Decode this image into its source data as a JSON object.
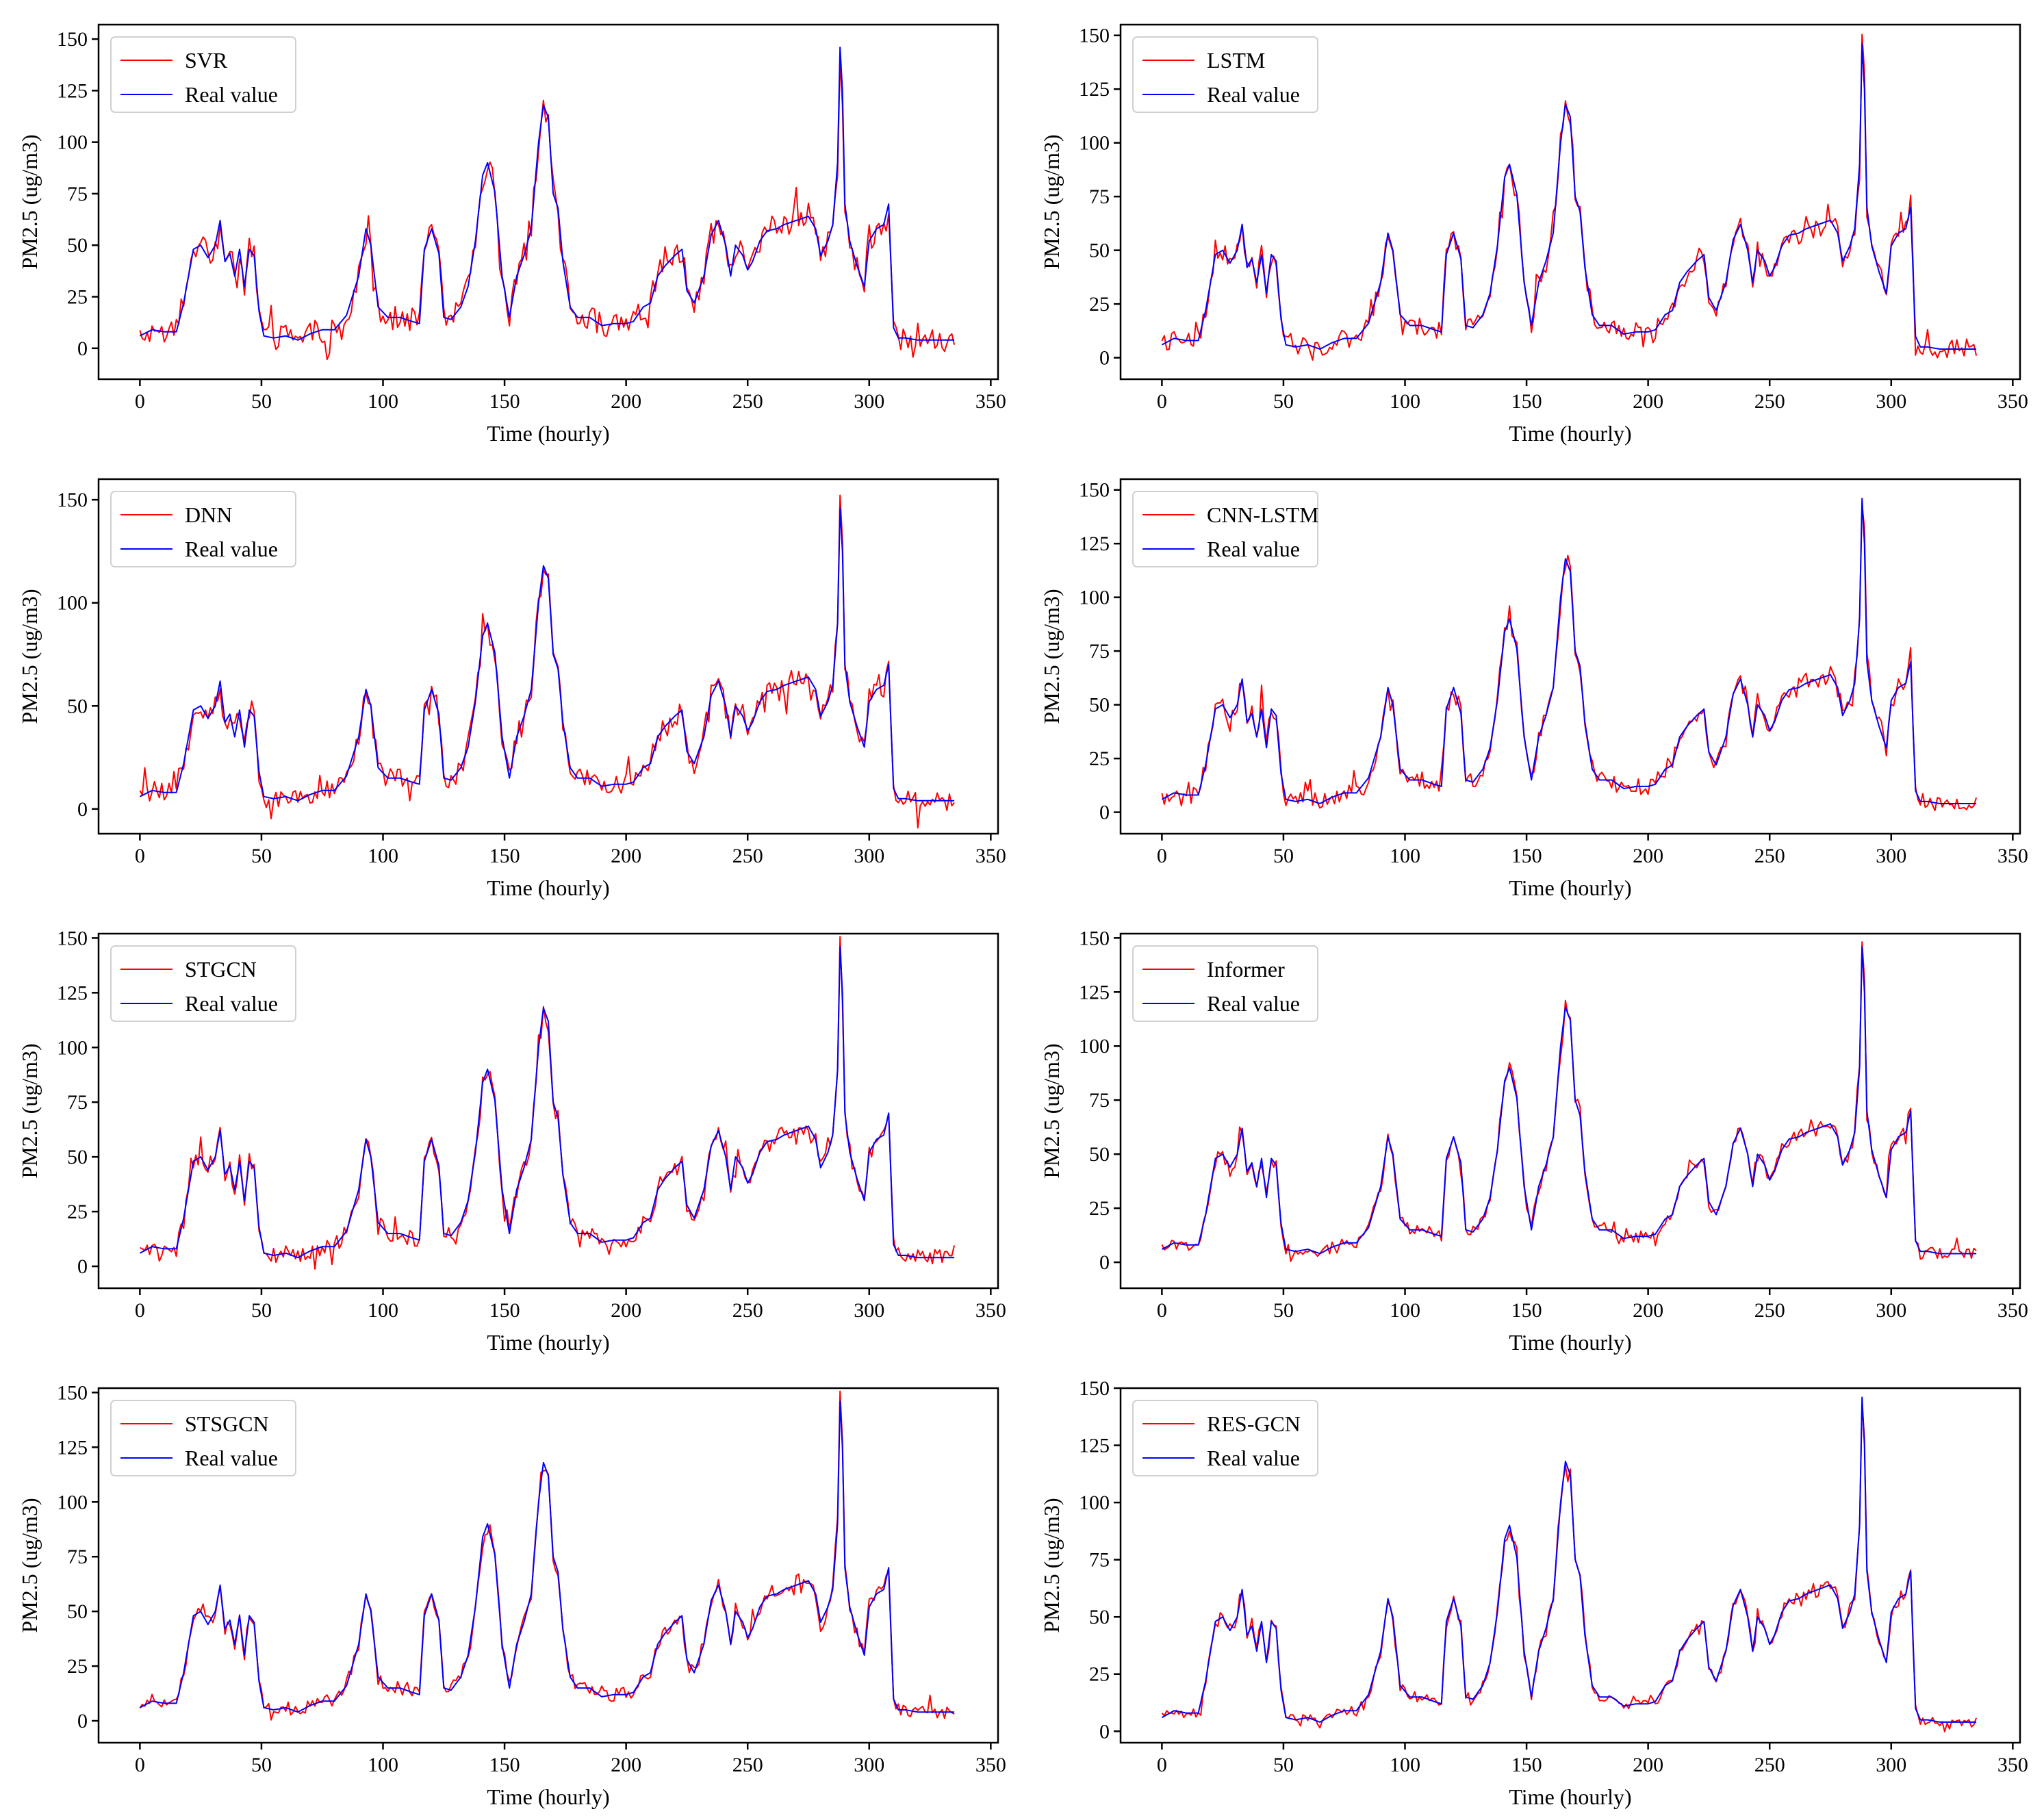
{
  "figure": {
    "colors": {
      "prediction": "#ff0000",
      "real": "#0000ff",
      "axis": "#000000"
    },
    "panels": [
      {
        "name": "panel-svr",
        "model": "SVR"
      },
      {
        "name": "panel-lstm",
        "model": "LSTM"
      },
      {
        "name": "panel-dnn",
        "model": "DNN"
      },
      {
        "name": "panel-cnn-lstm",
        "model": "CNN-LSTM"
      },
      {
        "name": "panel-stgcn",
        "model": "STGCN"
      },
      {
        "name": "panel-informer",
        "model": "Informer"
      },
      {
        "name": "panel-stsgcn",
        "model": "STSGCN"
      },
      {
        "name": "panel-res-gcn",
        "model": "RES-GCN"
      }
    ]
  },
  "chart_data": [
    {
      "type": "line",
      "title": "",
      "xlabel": "Time (hourly)",
      "ylabel": "PM2.5 (ug/m3)",
      "xlim": [
        -17,
        353
      ],
      "ylim": [
        -15,
        157
      ],
      "xticks": [
        0,
        50,
        100,
        150,
        200,
        250,
        300,
        350
      ],
      "yticks": [
        0,
        25,
        50,
        75,
        100,
        125,
        150
      ],
      "series": [
        {
          "name": "SVR",
          "color": "#ff0000",
          "noise": 6
        },
        {
          "name": "Real value",
          "color": "#0000ff"
        }
      ]
    },
    {
      "type": "line",
      "title": "",
      "xlabel": "Time (hourly)",
      "ylabel": "PM2.5 (ug/m3)",
      "xlim": [
        -17,
        353
      ],
      "ylim": [
        -10,
        155
      ],
      "xticks": [
        0,
        50,
        100,
        150,
        200,
        250,
        300,
        350
      ],
      "yticks": [
        0,
        25,
        50,
        75,
        100,
        125,
        150
      ],
      "series": [
        {
          "name": "LSTM",
          "color": "#ff0000",
          "noise": 4
        },
        {
          "name": "Real value",
          "color": "#0000ff"
        }
      ]
    },
    {
      "type": "line",
      "title": "",
      "xlabel": "Time (hourly)",
      "ylabel": "PM2.5 (ug/m3)",
      "xlim": [
        -17,
        353
      ],
      "ylim": [
        -12,
        160
      ],
      "xticks": [
        0,
        50,
        100,
        150,
        200,
        250,
        300,
        350
      ],
      "yticks": [
        0,
        50,
        100,
        150
      ],
      "series": [
        {
          "name": "DNN",
          "color": "#ff0000",
          "noise": 5
        },
        {
          "name": "Real value",
          "color": "#0000ff"
        }
      ]
    },
    {
      "type": "line",
      "title": "",
      "xlabel": "Time (hourly)",
      "ylabel": "PM2.5 (ug/m3)",
      "xlim": [
        -17,
        353
      ],
      "ylim": [
        -10,
        155
      ],
      "xticks": [
        0,
        50,
        100,
        150,
        200,
        250,
        300,
        350
      ],
      "yticks": [
        0,
        25,
        50,
        75,
        100,
        125,
        150
      ],
      "series": [
        {
          "name": "CNN-LSTM",
          "color": "#ff0000",
          "noise": 4
        },
        {
          "name": "Real value",
          "color": "#0000ff"
        }
      ]
    },
    {
      "type": "line",
      "title": "",
      "xlabel": "Time (hourly)",
      "ylabel": "PM2.5 (ug/m3)",
      "xlim": [
        -17,
        353
      ],
      "ylim": [
        -10,
        152
      ],
      "xticks": [
        0,
        50,
        100,
        150,
        200,
        250,
        300,
        350
      ],
      "yticks": [
        0,
        25,
        50,
        75,
        100,
        125,
        150
      ],
      "series": [
        {
          "name": "STGCN",
          "color": "#ff0000",
          "noise": 3.5
        },
        {
          "name": "Real value",
          "color": "#0000ff"
        }
      ]
    },
    {
      "type": "line",
      "title": "",
      "xlabel": "Time (hourly)",
      "ylabel": "PM2.5 (ug/m3)",
      "xlim": [
        -17,
        353
      ],
      "ylim": [
        -12,
        152
      ],
      "xticks": [
        0,
        50,
        100,
        150,
        200,
        250,
        300,
        350
      ],
      "yticks": [
        0,
        25,
        50,
        75,
        100,
        125,
        150
      ],
      "series": [
        {
          "name": "Informer",
          "color": "#ff0000",
          "noise": 2.5
        },
        {
          "name": "Real value",
          "color": "#0000ff"
        }
      ]
    },
    {
      "type": "line",
      "title": "",
      "xlabel": "Time (hourly)",
      "ylabel": "PM2.5 (ug/m3)",
      "xlim": [
        -17,
        353
      ],
      "ylim": [
        -10,
        152
      ],
      "xticks": [
        0,
        50,
        100,
        150,
        200,
        250,
        300,
        350
      ],
      "yticks": [
        0,
        25,
        50,
        75,
        100,
        125,
        150
      ],
      "series": [
        {
          "name": "STSGCN",
          "color": "#ff0000",
          "noise": 3
        },
        {
          "name": "Real value",
          "color": "#0000ff"
        }
      ]
    },
    {
      "type": "line",
      "title": "",
      "xlabel": "Time (hourly)",
      "ylabel": "PM2.5 (ug/m3)",
      "xlim": [
        -17,
        353
      ],
      "ylim": [
        -5,
        150
      ],
      "xticks": [
        0,
        50,
        100,
        150,
        200,
        250,
        300,
        350
      ],
      "yticks": [
        0,
        25,
        50,
        75,
        100,
        125,
        150
      ],
      "series": [
        {
          "name": "RES-GCN",
          "color": "#ff0000",
          "noise": 2
        },
        {
          "name": "Real value",
          "color": "#0000ff"
        }
      ]
    }
  ],
  "real_value_series": {
    "name": "Real value",
    "x_start": 0,
    "x_end": 335,
    "knots": [
      [
        0,
        6
      ],
      [
        5,
        9
      ],
      [
        10,
        8
      ],
      [
        15,
        8
      ],
      [
        18,
        22
      ],
      [
        22,
        48
      ],
      [
        25,
        50
      ],
      [
        28,
        44
      ],
      [
        31,
        50
      ],
      [
        33,
        62
      ],
      [
        35,
        42
      ],
      [
        37,
        46
      ],
      [
        39,
        35
      ],
      [
        41,
        48
      ],
      [
        43,
        30
      ],
      [
        45,
        48
      ],
      [
        47,
        45
      ],
      [
        49,
        18
      ],
      [
        51,
        6
      ],
      [
        55,
        5
      ],
      [
        60,
        6
      ],
      [
        65,
        4
      ],
      [
        70,
        7
      ],
      [
        75,
        9
      ],
      [
        80,
        9
      ],
      [
        85,
        16
      ],
      [
        90,
        35
      ],
      [
        93,
        58
      ],
      [
        95,
        50
      ],
      [
        98,
        20
      ],
      [
        102,
        15
      ],
      [
        107,
        15
      ],
      [
        112,
        13
      ],
      [
        115,
        12
      ],
      [
        117,
        48
      ],
      [
        120,
        58
      ],
      [
        123,
        46
      ],
      [
        125,
        15
      ],
      [
        128,
        14
      ],
      [
        132,
        20
      ],
      [
        135,
        30
      ],
      [
        138,
        52
      ],
      [
        141,
        84
      ],
      [
        143,
        90
      ],
      [
        146,
        76
      ],
      [
        149,
        35
      ],
      [
        152,
        15
      ],
      [
        155,
        35
      ],
      [
        158,
        45
      ],
      [
        161,
        58
      ],
      [
        164,
        100
      ],
      [
        166,
        118
      ],
      [
        168,
        112
      ],
      [
        170,
        75
      ],
      [
        172,
        68
      ],
      [
        174,
        42
      ],
      [
        177,
        20
      ],
      [
        180,
        15
      ],
      [
        185,
        15
      ],
      [
        190,
        11
      ],
      [
        195,
        12
      ],
      [
        200,
        12
      ],
      [
        203,
        13
      ],
      [
        207,
        20
      ],
      [
        210,
        22
      ],
      [
        213,
        35
      ],
      [
        216,
        40
      ],
      [
        220,
        45
      ],
      [
        223,
        48
      ],
      [
        225,
        28
      ],
      [
        228,
        22
      ],
      [
        232,
        35
      ],
      [
        235,
        55
      ],
      [
        238,
        62
      ],
      [
        241,
        50
      ],
      [
        243,
        35
      ],
      [
        245,
        50
      ],
      [
        248,
        45
      ],
      [
        250,
        38
      ],
      [
        252,
        42
      ],
      [
        255,
        52
      ],
      [
        258,
        57
      ],
      [
        262,
        58
      ],
      [
        265,
        60
      ],
      [
        270,
        62
      ],
      [
        275,
        64
      ],
      [
        278,
        58
      ],
      [
        280,
        45
      ],
      [
        283,
        52
      ],
      [
        285,
        60
      ],
      [
        287,
        90
      ],
      [
        288,
        146
      ],
      [
        289,
        125
      ],
      [
        290,
        70
      ],
      [
        292,
        52
      ],
      [
        295,
        40
      ],
      [
        298,
        30
      ],
      [
        300,
        52
      ],
      [
        303,
        58
      ],
      [
        306,
        60
      ],
      [
        308,
        70
      ],
      [
        310,
        10
      ],
      [
        312,
        5
      ],
      [
        315,
        5
      ],
      [
        320,
        4
      ],
      [
        325,
        4
      ],
      [
        330,
        4
      ],
      [
        335,
        4
      ]
    ]
  }
}
